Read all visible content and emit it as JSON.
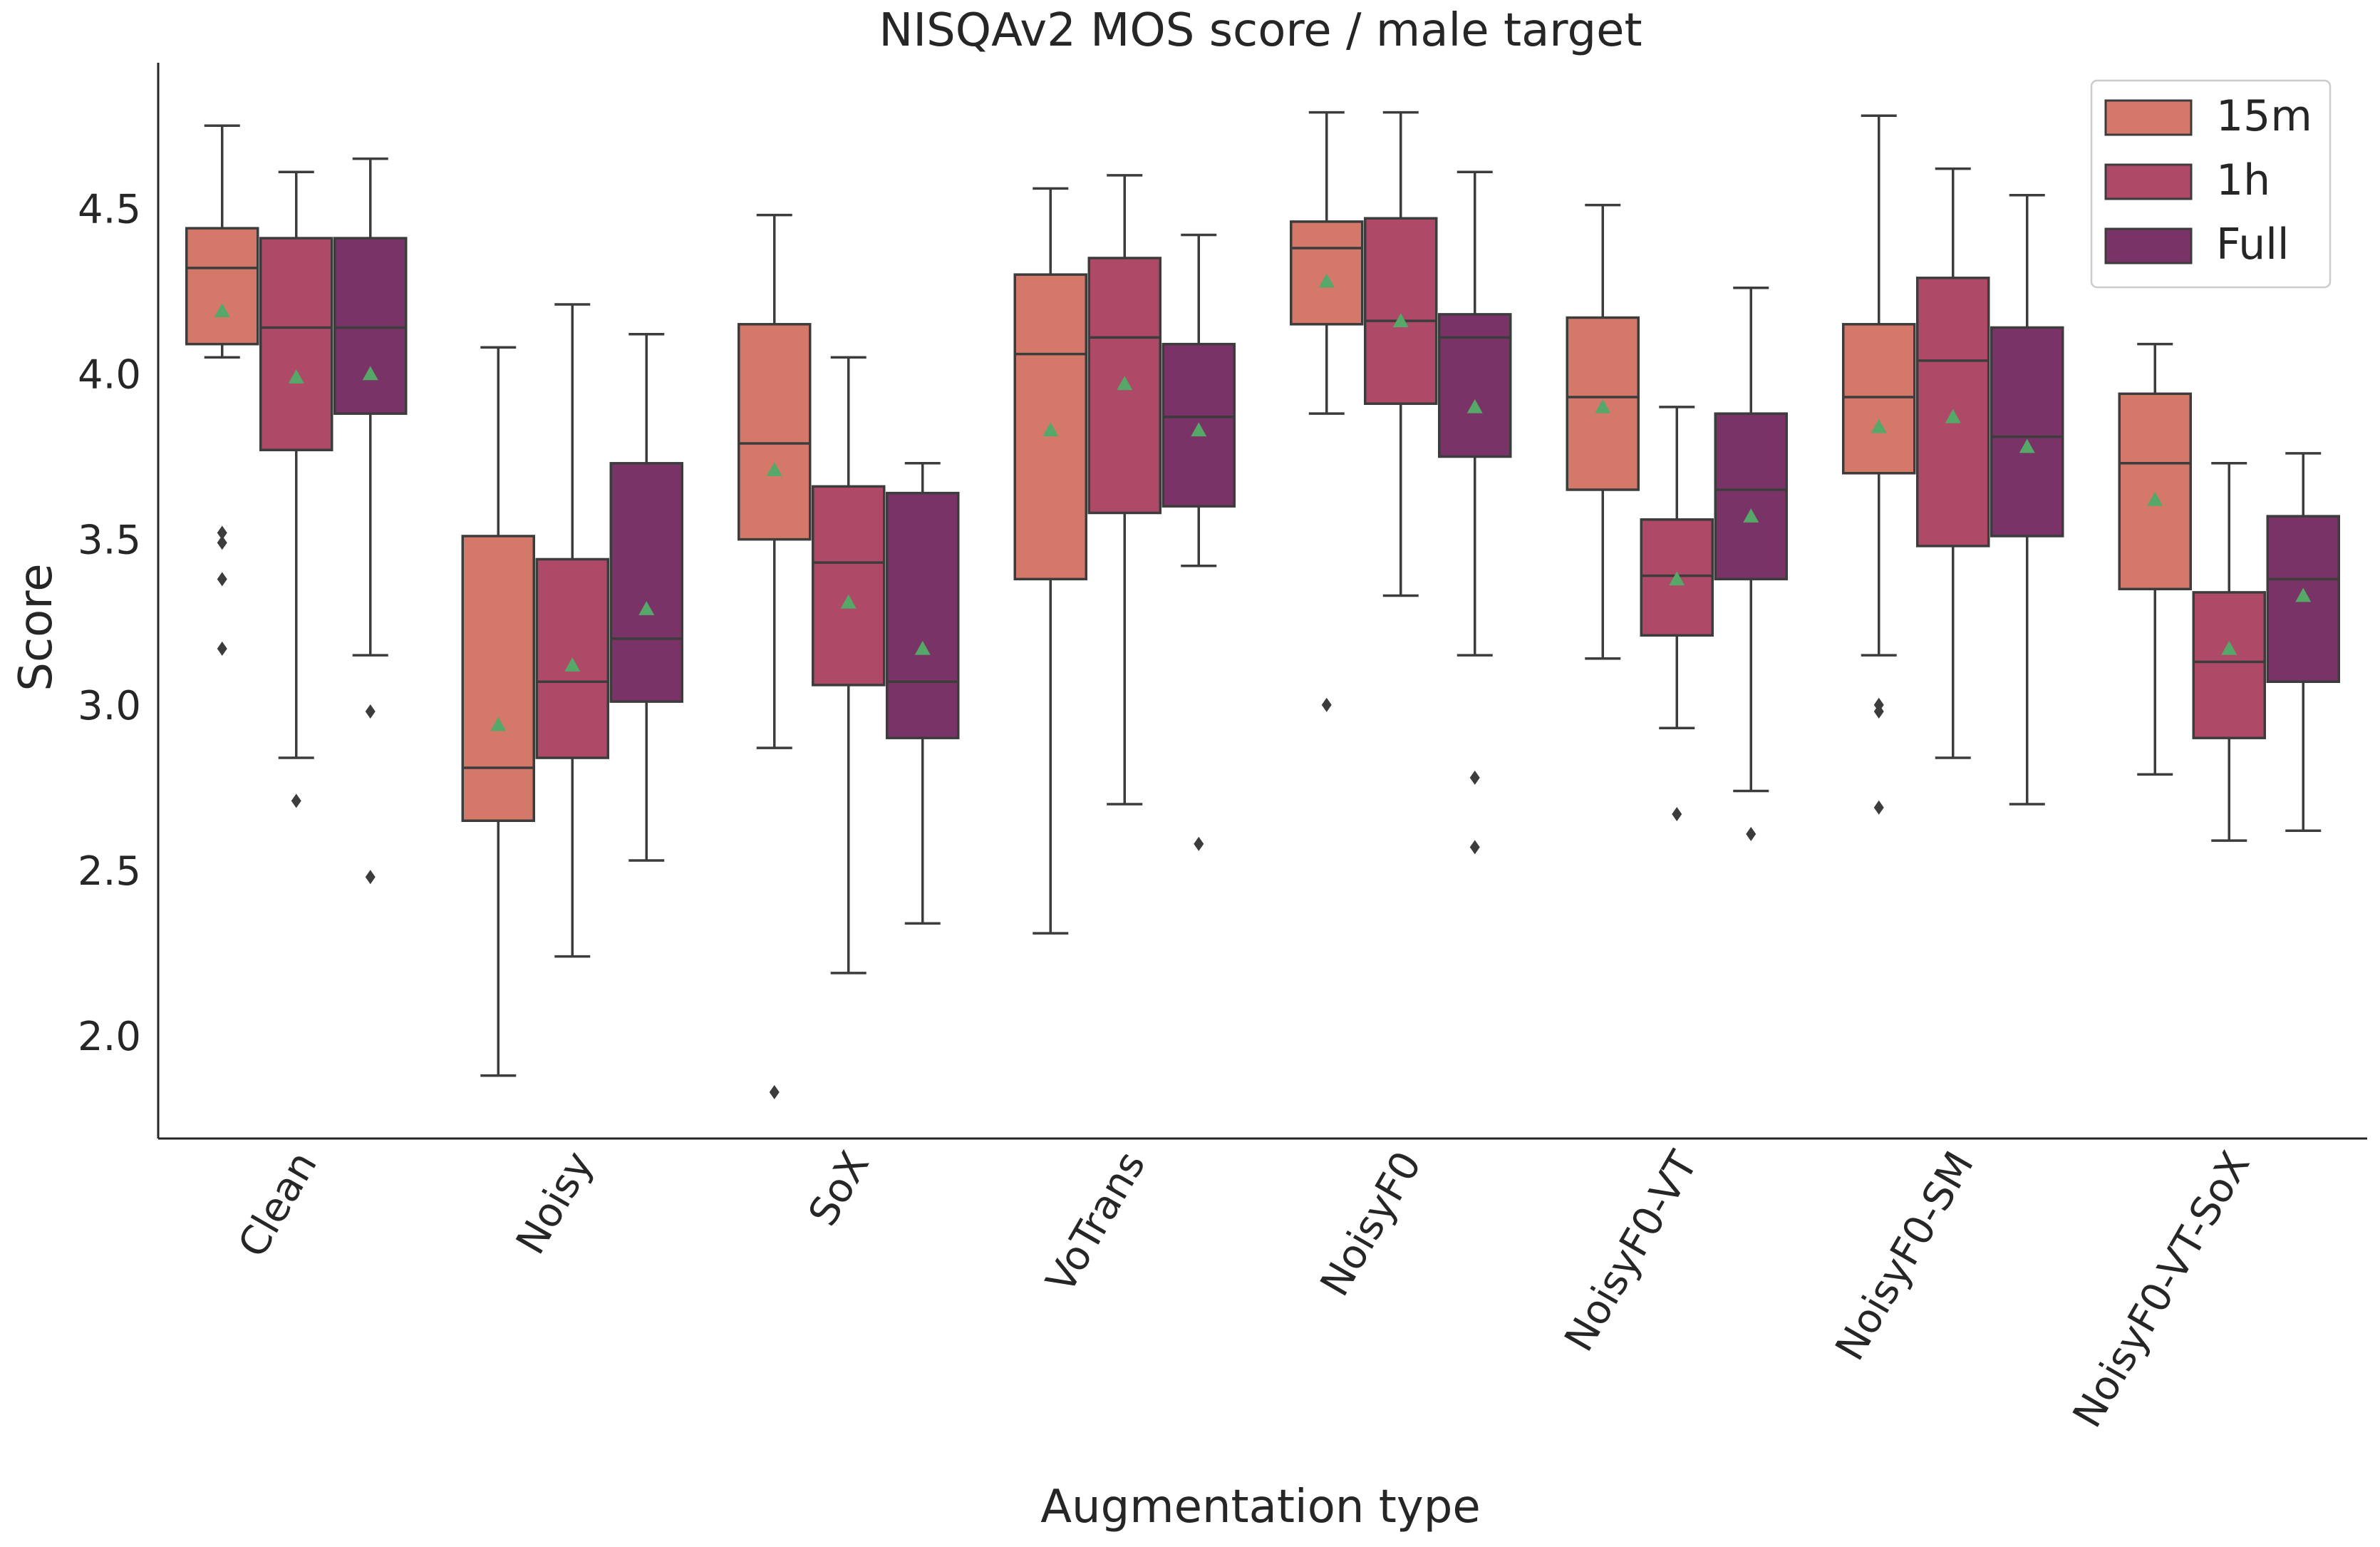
{
  "chart_data": {
    "type": "box",
    "title": "NISQAv2 MOS score / male target",
    "xlabel": "Augmentation type",
    "ylabel": "Score",
    "ylim": [
      1.69,
      4.94
    ],
    "yticks": [
      "2.0",
      "2.5",
      "3.0",
      "3.5",
      "4.0",
      "4.5"
    ],
    "legend_position": "top-right",
    "categories": [
      "Clean",
      "Noisy",
      "SoX",
      "VoTrans",
      "NoisyF0",
      "NoisyF0-VT",
      "NoisyF0-SM",
      "NoisyF0-VT-SoX"
    ],
    "series": [
      {
        "name": "15m",
        "color": "#d4786a",
        "boxes": [
          {
            "whislo": 4.05,
            "q1": 4.09,
            "med": 4.32,
            "q3": 4.44,
            "whishi": 4.75,
            "mean": 4.19,
            "fliers": [
              3.52,
              3.49,
              3.38,
              3.17
            ]
          },
          {
            "whislo": 1.88,
            "q1": 2.65,
            "med": 2.81,
            "q3": 3.51,
            "whishi": 4.08,
            "mean": 2.94,
            "fliers": []
          },
          {
            "whislo": 2.87,
            "q1": 3.5,
            "med": 3.79,
            "q3": 4.15,
            "whishi": 4.48,
            "mean": 3.71,
            "fliers": [
              1.83
            ]
          },
          {
            "whislo": 2.31,
            "q1": 3.38,
            "med": 4.06,
            "q3": 4.3,
            "whishi": 4.56,
            "mean": 3.83,
            "fliers": []
          },
          {
            "whislo": 3.88,
            "q1": 4.15,
            "med": 4.38,
            "q3": 4.46,
            "whishi": 4.79,
            "mean": 4.28,
            "fliers": [
              3.0
            ]
          },
          {
            "whislo": 3.14,
            "q1": 3.65,
            "med": 3.93,
            "q3": 4.17,
            "whishi": 4.51,
            "mean": 3.9,
            "fliers": []
          },
          {
            "whislo": 3.15,
            "q1": 3.7,
            "med": 3.93,
            "q3": 4.15,
            "whishi": 4.78,
            "mean": 3.84,
            "fliers": [
              3.0,
              2.98,
              2.69
            ]
          },
          {
            "whislo": 2.79,
            "q1": 3.35,
            "med": 3.73,
            "q3": 3.94,
            "whishi": 4.09,
            "mean": 3.62,
            "fliers": []
          }
        ]
      },
      {
        "name": "1h",
        "color": "#ae4a68",
        "boxes": [
          {
            "whislo": 2.84,
            "q1": 3.77,
            "med": 4.14,
            "q3": 4.41,
            "whishi": 4.61,
            "mean": 3.99,
            "fliers": [
              2.71
            ]
          },
          {
            "whislo": 2.24,
            "q1": 2.84,
            "med": 3.07,
            "q3": 3.44,
            "whishi": 4.21,
            "mean": 3.12,
            "fliers": []
          },
          {
            "whislo": 2.19,
            "q1": 3.06,
            "med": 3.43,
            "q3": 3.66,
            "whishi": 4.05,
            "mean": 3.31,
            "fliers": []
          },
          {
            "whislo": 2.7,
            "q1": 3.58,
            "med": 4.11,
            "q3": 4.35,
            "whishi": 4.6,
            "mean": 3.97,
            "fliers": []
          },
          {
            "whislo": 3.33,
            "q1": 3.91,
            "med": 4.16,
            "q3": 4.47,
            "whishi": 4.79,
            "mean": 4.16,
            "fliers": []
          },
          {
            "whislo": 2.93,
            "q1": 3.21,
            "med": 3.39,
            "q3": 3.56,
            "whishi": 3.9,
            "mean": 3.38,
            "fliers": [
              2.67
            ]
          },
          {
            "whislo": 2.84,
            "q1": 3.48,
            "med": 4.04,
            "q3": 4.29,
            "whishi": 4.62,
            "mean": 3.87,
            "fliers": []
          },
          {
            "whislo": 2.59,
            "q1": 2.9,
            "med": 3.13,
            "q3": 3.34,
            "whishi": 3.73,
            "mean": 3.17,
            "fliers": []
          }
        ]
      },
      {
        "name": "Full",
        "color": "#7a3366",
        "boxes": [
          {
            "whislo": 3.15,
            "q1": 3.88,
            "med": 4.14,
            "q3": 4.41,
            "whishi": 4.65,
            "mean": 4.0,
            "fliers": [
              2.98,
              2.48
            ]
          },
          {
            "whislo": 2.53,
            "q1": 3.01,
            "med": 3.2,
            "q3": 3.73,
            "whishi": 4.12,
            "mean": 3.29,
            "fliers": []
          },
          {
            "whislo": 2.34,
            "q1": 2.9,
            "med": 3.07,
            "q3": 3.64,
            "whishi": 3.73,
            "mean": 3.17,
            "fliers": []
          },
          {
            "whislo": 3.42,
            "q1": 3.6,
            "med": 3.87,
            "q3": 4.09,
            "whishi": 4.42,
            "mean": 3.83,
            "fliers": [
              2.58
            ]
          },
          {
            "whislo": 3.15,
            "q1": 3.75,
            "med": 4.11,
            "q3": 4.18,
            "whishi": 4.61,
            "mean": 3.9,
            "fliers": [
              2.78,
              2.57
            ]
          },
          {
            "whislo": 2.74,
            "q1": 3.38,
            "med": 3.65,
            "q3": 3.88,
            "whishi": 4.26,
            "mean": 3.57,
            "fliers": [
              2.61
            ]
          },
          {
            "whislo": 2.7,
            "q1": 3.51,
            "med": 3.81,
            "q3": 4.14,
            "whishi": 4.54,
            "mean": 3.78,
            "fliers": []
          },
          {
            "whislo": 2.62,
            "q1": 3.07,
            "med": 3.38,
            "q3": 3.57,
            "whishi": 3.76,
            "mean": 3.33,
            "fliers": []
          }
        ]
      }
    ],
    "mean_marker_color": "#55a868",
    "outlier_color": "#3c3c3c",
    "line_color": "#3c3c3c"
  }
}
